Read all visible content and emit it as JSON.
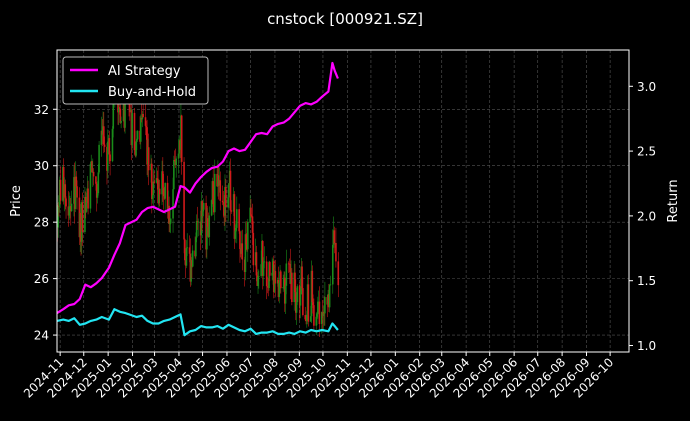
{
  "chart_data": {
    "type": "line",
    "title": "cnstock [000921.SZ]",
    "ylabel": "Price",
    "y2label": "Return",
    "background": "#000000",
    "grid": true,
    "legend_position": "top-left",
    "xlim": [
      "2024-10-28",
      "2026-10-25"
    ],
    "ylim": [
      23.4,
      34.1
    ],
    "y2lim": [
      0.95,
      3.28
    ],
    "x_ticks": [
      "2024-11-01",
      "2024-12-01",
      "2025-01-01",
      "2025-02-01",
      "2025-03-01",
      "2025-04-01",
      "2025-05-01",
      "2025-06-01",
      "2025-07-01",
      "2025-08-01",
      "2025-09-01",
      "2025-10-01",
      "2025-11-01",
      "2025-12-01",
      "2026-01-01",
      "2026-02-01",
      "2026-03-01",
      "2026-04-01",
      "2026-05-01",
      "2026-06-01",
      "2026-07-01",
      "2026-08-01",
      "2026-09-01",
      "2026-10-01"
    ],
    "x_tick_labels": [
      "2024-11",
      "2024-12",
      "2025-01",
      "2025-02",
      "2025-03",
      "2025-04",
      "2025-05",
      "2025-06",
      "2025-07",
      "2025-08",
      "2025-09",
      "2025-10",
      "2025-11",
      "2025-12",
      "2026-01",
      "2026-02",
      "2026-03",
      "2026-04",
      "2026-05",
      "2026-06",
      "2026-07",
      "2026-08",
      "2026-09",
      "2026-10"
    ],
    "y_ticks": [
      24,
      26,
      28,
      30,
      32
    ],
    "y2_ticks": [
      1.0,
      1.5,
      2.0,
      2.5,
      3.0
    ],
    "y2_tick_labels": [
      "1.0",
      "1.5",
      "2.0",
      "2.5",
      "3.0"
    ],
    "candlestick": {
      "up_color": "#1a8c1a",
      "down_color": "#d11a1a",
      "start": "2024-10-28",
      "end": "2025-10-20",
      "price_path": [
        [
          "2024-10-28",
          28.6
        ],
        [
          "2024-11-05",
          29.5
        ],
        [
          "2024-11-12",
          28.2
        ],
        [
          "2024-11-19",
          29.0
        ],
        [
          "2024-11-26",
          27.8
        ],
        [
          "2024-12-03",
          28.6
        ],
        [
          "2024-12-10",
          29.8
        ],
        [
          "2024-12-17",
          29.3
        ],
        [
          "2024-12-24",
          31.0
        ],
        [
          "2025-01-02",
          30.2
        ],
        [
          "2025-01-09",
          32.5
        ],
        [
          "2025-01-16",
          31.6
        ],
        [
          "2025-01-23",
          32.2
        ],
        [
          "2025-02-06",
          30.8
        ],
        [
          "2025-02-13",
          31.4
        ],
        [
          "2025-02-20",
          30.4
        ],
        [
          "2025-02-27",
          29.2
        ],
        [
          "2025-03-06",
          28.6
        ],
        [
          "2025-03-13",
          29.4
        ],
        [
          "2025-03-20",
          28.5
        ],
        [
          "2025-03-27",
          29.8
        ],
        [
          "2025-04-03",
          31.2
        ],
        [
          "2025-04-08",
          27.2
        ],
        [
          "2025-04-15",
          26.4
        ],
        [
          "2025-04-22",
          27.6
        ],
        [
          "2025-04-29",
          28.2
        ],
        [
          "2025-05-06",
          27.5
        ],
        [
          "2025-05-13",
          28.8
        ],
        [
          "2025-05-20",
          29.3
        ],
        [
          "2025-05-27",
          28.4
        ],
        [
          "2025-06-03",
          29.6
        ],
        [
          "2025-06-10",
          28.2
        ],
        [
          "2025-06-17",
          27.6
        ],
        [
          "2025-06-24",
          26.8
        ],
        [
          "2025-07-01",
          27.9
        ],
        [
          "2025-07-08",
          26.2
        ],
        [
          "2025-07-15",
          26.6
        ],
        [
          "2025-07-22",
          25.6
        ],
        [
          "2025-07-29",
          26.4
        ],
        [
          "2025-08-05",
          25.4
        ],
        [
          "2025-08-12",
          25.8
        ],
        [
          "2025-08-19",
          26.2
        ],
        [
          "2025-08-26",
          25.3
        ],
        [
          "2025-09-02",
          25.8
        ],
        [
          "2025-09-09",
          24.8
        ],
        [
          "2025-09-16",
          25.5
        ],
        [
          "2025-09-23",
          24.6
        ],
        [
          "2025-09-30",
          25.1
        ],
        [
          "2025-10-08",
          24.9
        ],
        [
          "2025-10-13",
          27.3
        ],
        [
          "2025-10-16",
          26.5
        ],
        [
          "2025-10-20",
          26.0
        ]
      ]
    },
    "series": [
      {
        "name": "AI Strategy",
        "color": "#ff00ff",
        "axis": "right",
        "points": [
          [
            "2024-10-28",
            1.25
          ],
          [
            "2024-11-05",
            1.28
          ],
          [
            "2024-11-12",
            1.31
          ],
          [
            "2024-11-19",
            1.32
          ],
          [
            "2024-11-26",
            1.36
          ],
          [
            "2024-12-03",
            1.47
          ],
          [
            "2024-12-10",
            1.45
          ],
          [
            "2024-12-17",
            1.48
          ],
          [
            "2024-12-24",
            1.52
          ],
          [
            "2025-01-02",
            1.6
          ],
          [
            "2025-01-09",
            1.7
          ],
          [
            "2025-01-16",
            1.79
          ],
          [
            "2025-01-23",
            1.93
          ],
          [
            "2025-02-06",
            1.97
          ],
          [
            "2025-02-13",
            2.03
          ],
          [
            "2025-02-20",
            2.06
          ],
          [
            "2025-02-27",
            2.07
          ],
          [
            "2025-03-06",
            2.05
          ],
          [
            "2025-03-13",
            2.03
          ],
          [
            "2025-03-20",
            2.05
          ],
          [
            "2025-03-27",
            2.07
          ],
          [
            "2025-04-03",
            2.23
          ],
          [
            "2025-04-08",
            2.22
          ],
          [
            "2025-04-15",
            2.18
          ],
          [
            "2025-04-22",
            2.25
          ],
          [
            "2025-04-29",
            2.3
          ],
          [
            "2025-05-06",
            2.34
          ],
          [
            "2025-05-13",
            2.37
          ],
          [
            "2025-05-20",
            2.38
          ],
          [
            "2025-05-27",
            2.42
          ],
          [
            "2025-06-03",
            2.5
          ],
          [
            "2025-06-10",
            2.52
          ],
          [
            "2025-06-17",
            2.5
          ],
          [
            "2025-06-24",
            2.51
          ],
          [
            "2025-07-01",
            2.57
          ],
          [
            "2025-07-08",
            2.63
          ],
          [
            "2025-07-15",
            2.64
          ],
          [
            "2025-07-22",
            2.63
          ],
          [
            "2025-07-29",
            2.69
          ],
          [
            "2025-08-05",
            2.71
          ],
          [
            "2025-08-12",
            2.72
          ],
          [
            "2025-08-19",
            2.75
          ],
          [
            "2025-08-26",
            2.8
          ],
          [
            "2025-09-02",
            2.85
          ],
          [
            "2025-09-09",
            2.87
          ],
          [
            "2025-09-16",
            2.86
          ],
          [
            "2025-09-23",
            2.88
          ],
          [
            "2025-09-30",
            2.92
          ],
          [
            "2025-10-08",
            2.96
          ],
          [
            "2025-10-13",
            3.18
          ],
          [
            "2025-10-16",
            3.12
          ],
          [
            "2025-10-20",
            3.06
          ]
        ]
      },
      {
        "name": "Buy-and-Hold",
        "color": "#22e5f2",
        "axis": "right",
        "points": [
          [
            "2024-10-28",
            1.19
          ],
          [
            "2024-11-05",
            1.2
          ],
          [
            "2024-11-12",
            1.19
          ],
          [
            "2024-11-19",
            1.21
          ],
          [
            "2024-11-26",
            1.16
          ],
          [
            "2024-12-03",
            1.17
          ],
          [
            "2024-12-10",
            1.19
          ],
          [
            "2024-12-17",
            1.2
          ],
          [
            "2024-12-24",
            1.22
          ],
          [
            "2025-01-02",
            1.2
          ],
          [
            "2025-01-09",
            1.28
          ],
          [
            "2025-01-16",
            1.26
          ],
          [
            "2025-01-23",
            1.25
          ],
          [
            "2025-02-06",
            1.22
          ],
          [
            "2025-02-13",
            1.23
          ],
          [
            "2025-02-20",
            1.19
          ],
          [
            "2025-02-27",
            1.17
          ],
          [
            "2025-03-06",
            1.17
          ],
          [
            "2025-03-13",
            1.19
          ],
          [
            "2025-03-20",
            1.2
          ],
          [
            "2025-03-27",
            1.22
          ],
          [
            "2025-04-03",
            1.24
          ],
          [
            "2025-04-08",
            1.08
          ],
          [
            "2025-04-15",
            1.11
          ],
          [
            "2025-04-22",
            1.12
          ],
          [
            "2025-04-29",
            1.15
          ],
          [
            "2025-05-06",
            1.14
          ],
          [
            "2025-05-13",
            1.14
          ],
          [
            "2025-05-20",
            1.15
          ],
          [
            "2025-05-27",
            1.13
          ],
          [
            "2025-06-03",
            1.16
          ],
          [
            "2025-06-10",
            1.14
          ],
          [
            "2025-06-17",
            1.12
          ],
          [
            "2025-06-24",
            1.11
          ],
          [
            "2025-07-01",
            1.13
          ],
          [
            "2025-07-08",
            1.09
          ],
          [
            "2025-07-15",
            1.1
          ],
          [
            "2025-07-22",
            1.1
          ],
          [
            "2025-07-29",
            1.11
          ],
          [
            "2025-08-05",
            1.09
          ],
          [
            "2025-08-12",
            1.09
          ],
          [
            "2025-08-19",
            1.1
          ],
          [
            "2025-08-26",
            1.09
          ],
          [
            "2025-09-02",
            1.11
          ],
          [
            "2025-09-09",
            1.1
          ],
          [
            "2025-09-16",
            1.12
          ],
          [
            "2025-09-23",
            1.11
          ],
          [
            "2025-09-30",
            1.12
          ],
          [
            "2025-10-08",
            1.11
          ],
          [
            "2025-10-13",
            1.17
          ],
          [
            "2025-10-16",
            1.15
          ],
          [
            "2025-10-20",
            1.12
          ]
        ]
      }
    ]
  }
}
